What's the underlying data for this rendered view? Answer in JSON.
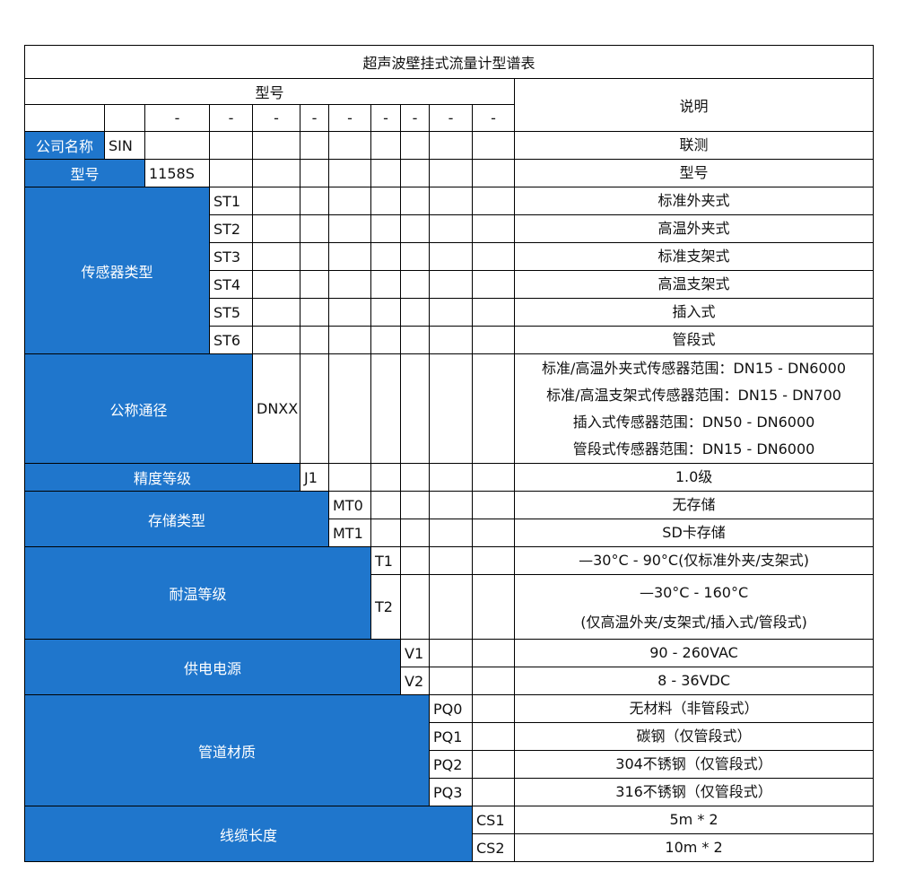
{
  "title": "超声波壁挂式流量计型谱表",
  "header": {
    "model_label": "型号",
    "desc_label": "说明",
    "dash": "-"
  },
  "colors": {
    "label_bg": "#1f76cc",
    "label_text": "#ffffff",
    "border": "#000000"
  },
  "groups": [
    {
      "label": "公司名称",
      "rows": [
        {
          "code": "SIN",
          "desc": [
            "联测"
          ]
        }
      ]
    },
    {
      "label": "型号",
      "rows": [
        {
          "code": "1158S",
          "desc": [
            "型号"
          ]
        }
      ]
    },
    {
      "label": "传感器类型",
      "rows": [
        {
          "code": "ST1",
          "desc": [
            "标准外夹式"
          ]
        },
        {
          "code": "ST2",
          "desc": [
            "高温外夹式"
          ]
        },
        {
          "code": "ST3",
          "desc": [
            "标准支架式"
          ]
        },
        {
          "code": "ST4",
          "desc": [
            "高温支架式"
          ]
        },
        {
          "code": "ST5",
          "desc": [
            "插入式"
          ]
        },
        {
          "code": "ST6",
          "desc": [
            "管段式"
          ]
        }
      ]
    },
    {
      "label": "公称通径",
      "rows": [
        {
          "code": "DNXX",
          "desc": [
            "标准/高温外夹式传感器范围：DN15 - DN6000",
            "标准/高温支架式传感器范围：DN15 - DN700",
            "插入式传感器范围：DN50 - DN6000",
            "管段式传感器范围：DN15 - DN6000"
          ]
        }
      ]
    },
    {
      "label": "精度等级",
      "rows": [
        {
          "code": "J1",
          "desc": [
            "1.0级"
          ]
        }
      ]
    },
    {
      "label": "存储类型",
      "rows": [
        {
          "code": "MT0",
          "desc": [
            "无存储"
          ]
        },
        {
          "code": "MT1",
          "desc": [
            "SD卡存储"
          ]
        }
      ]
    },
    {
      "label": "耐温等级",
      "rows": [
        {
          "code": "T1",
          "desc": [
            "—30°C - 90°C(仅标准外夹/支架式)"
          ]
        },
        {
          "code": "T2",
          "desc": [
            "—30°C - 160°C",
            "(仅高温外夹/支架式/插入式/管段式)"
          ]
        }
      ]
    },
    {
      "label": "供电电源",
      "rows": [
        {
          "code": "V1",
          "desc": [
            "90 - 260VAC"
          ]
        },
        {
          "code": "V2",
          "desc": [
            "8 - 36VDC"
          ]
        }
      ]
    },
    {
      "label": "管道材质",
      "rows": [
        {
          "code": "PQ0",
          "desc": [
            "无材料（非管段式）"
          ]
        },
        {
          "code": "PQ1",
          "desc": [
            "碳钢（仅管段式）"
          ]
        },
        {
          "code": "PQ2",
          "desc": [
            "304不锈钢（仅管段式）"
          ]
        },
        {
          "code": "PQ3",
          "desc": [
            "316不锈钢（仅管段式）"
          ]
        }
      ]
    },
    {
      "label": "线缆长度",
      "rows": [
        {
          "code": "CS1",
          "desc": [
            "5m * 2"
          ]
        },
        {
          "code": "CS2",
          "desc": [
            "10m * 2"
          ]
        }
      ]
    }
  ]
}
